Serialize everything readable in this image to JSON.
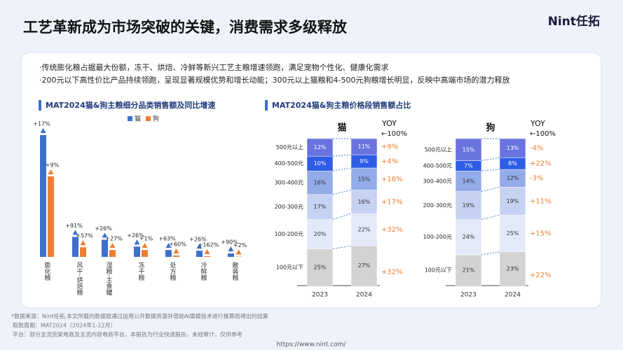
{
  "header": {
    "title": "工艺革新成为市场突破的关键，消费需求多级释放",
    "logo": "Nint任拓"
  },
  "bullets": [
    "·传统膨化粮占据最大份额，冻干、烘焙、冷鲜等新兴工艺主粮增速领跑，满足宠物个性化、健康化需求",
    "·200元以下高性价比产品持续领跑，呈现显著规模优势和增长动能；300元以上猫粮和4-500元狗粮增长明显，反映中高端市场的潜力释放"
  ],
  "chart_data": [
    {
      "type": "bar",
      "title": "MAT2024猫&狗主粮细分品类销售额及同比增速",
      "categories": [
        "膨化粮",
        "风干·烘焙粮",
        "湿粮·主食罐",
        "冻干粮",
        "处方粮",
        "冷鲜粮",
        "散装粮"
      ],
      "ylim": [
        0,
        180
      ],
      "series": [
        {
          "name": "猫",
          "color": "#3d6fcc",
          "values": [
            177,
            29,
            25,
            15,
            10,
            9,
            5
          ],
          "growth": [
            17,
            91,
            26,
            26,
            63,
            26,
            90
          ],
          "growth_labels": [
            "+17%",
            "+91%",
            "+26%",
            "+26%",
            "+63%",
            "+26%",
            "+90%"
          ]
        },
        {
          "name": "狗",
          "color": "#ef7d31",
          "values": [
            117,
            14,
            10,
            10,
            2,
            1,
            0.5
          ],
          "growth": [
            9,
            57,
            27,
            1,
            60,
            162,
            2
          ],
          "growth_labels": [
            "+9%",
            "+57%",
            "+27%",
            "+1%",
            "+60%",
            "+162%",
            "+2%"
          ]
        }
      ]
    },
    {
      "type": "stacked_bar",
      "title": "MAT2024猫&狗主粮价格段销售额占比",
      "subtitle": "猫",
      "categories": [
        "2023",
        "2024"
      ],
      "ylim": [
        0,
        100
      ],
      "yoy_header": "YOY",
      "yoy_base": "←100%",
      "series": [
        {
          "name": "100元以下",
          "color": "#d3d3d3",
          "values": [
            25,
            27
          ],
          "value_labels": [
            "25%",
            "27%"
          ]
        },
        {
          "name": "100-200元",
          "color": "#e3e9f8",
          "values": [
            20,
            22
          ],
          "value_labels": [
            "20%",
            "22%"
          ]
        },
        {
          "name": "200-300元",
          "color": "#c5d2f2",
          "values": [
            17,
            16
          ],
          "value_labels": [
            "17%",
            "16%"
          ]
        },
        {
          "name": "300-400元",
          "color": "#93abe9",
          "values": [
            16,
            15
          ],
          "value_labels": [
            "16%",
            "15%"
          ]
        },
        {
          "name": "400-500元",
          "color": "#2e5ce6",
          "values": [
            10,
            9
          ],
          "value_labels": [
            "10%",
            "9%"
          ]
        },
        {
          "name": "500元以上",
          "color": "#6a74e0",
          "values": [
            12,
            11
          ],
          "value_labels": [
            "12%",
            "11%"
          ]
        }
      ],
      "yoy": [
        32,
        32,
        17,
        16,
        4,
        9
      ],
      "yoy_labels": [
        "+32%",
        "+32%",
        "+17%",
        "+16%",
        "+4%",
        "+9%"
      ]
    },
    {
      "type": "stacked_bar",
      "subtitle": "狗",
      "categories": [
        "2023",
        "2024"
      ],
      "ylim": [
        0,
        100
      ],
      "yoy_header": "YOY",
      "yoy_base": "←100%",
      "series": [
        {
          "name": "100元以下",
          "color": "#d3d3d3",
          "values": [
            21,
            23
          ],
          "value_labels": [
            "21%",
            "23%"
          ]
        },
        {
          "name": "100-200元",
          "color": "#e3e9f8",
          "values": [
            24,
            25
          ],
          "value_labels": [
            "24%",
            "25%"
          ]
        },
        {
          "name": "200-300元",
          "color": "#c5d2f2",
          "values": [
            19,
            19
          ],
          "value_labels": [
            "19%",
            "19%"
          ]
        },
        {
          "name": "300-400元",
          "color": "#93abe9",
          "values": [
            14,
            12
          ],
          "value_labels": [
            "14%",
            "12%"
          ]
        },
        {
          "name": "400-500元",
          "color": "#2e5ce6",
          "values": [
            7,
            8
          ],
          "value_labels": [
            "7%",
            "8%"
          ]
        },
        {
          "name": "500元以上",
          "color": "#6a74e0",
          "values": [
            15,
            13
          ],
          "value_labels": [
            "15%",
            "13%"
          ]
        }
      ],
      "yoy": [
        22,
        15,
        11,
        -3,
        22,
        -4
      ],
      "yoy_labels": [
        "+22%",
        "+15%",
        "+11%",
        "-3%",
        "+22%",
        "-4%"
      ]
    }
  ],
  "footer": {
    "notes": [
      "*数据来源：Nint任拓,本文所载的数据是通过运用公开数据资源并借助AI建模技术进行推算而得出的结果",
      "取数周期：MAT2024（2024年1-12月）",
      "平台：部分主流货架电商及主流内容电商平台，本报告为行业快速报告，未经审计，仅供参考"
    ],
    "url": "https://www.nint.com/"
  }
}
